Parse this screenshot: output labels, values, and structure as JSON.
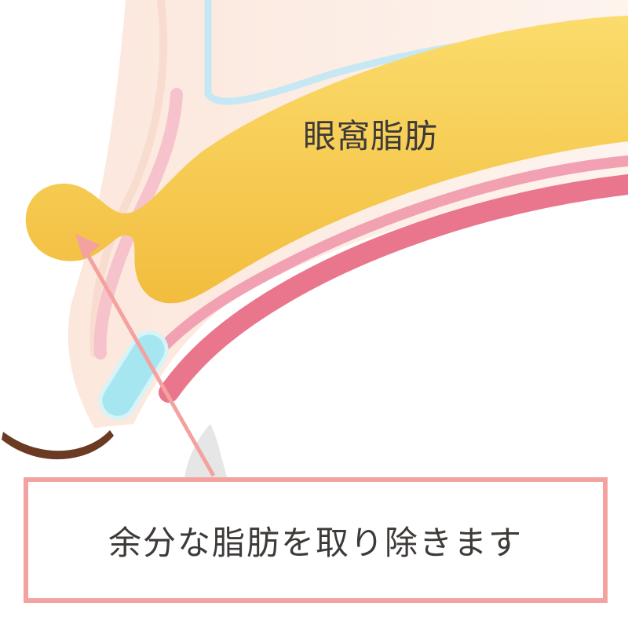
{
  "diagram": {
    "fat_label": "眼窩脂肪",
    "caption": "余分な脂肪を取り除きます",
    "colors": {
      "fat": "#f7cf50",
      "fat_shadow": "#eeb436",
      "skin": "#fdefe5",
      "muscle_pink": "#f2a3b4",
      "tarsus_red": "#e9768c",
      "blue_line": "#bfe3f2",
      "cyan_capsule": "#a6e6f0",
      "lash": "#6b3a22",
      "arrow": "#f4a2a0",
      "frame": "#f4a2a0"
    }
  }
}
